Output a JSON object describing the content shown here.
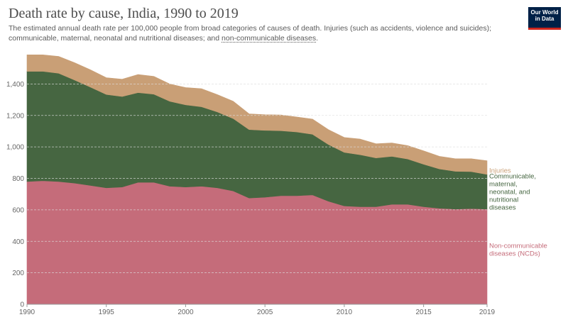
{
  "header": {
    "title": "Death rate by cause, India, 1990 to 2019",
    "subtitle_main": "The estimated annual death rate per 100,000 people from broad categories of causes of death. Injuries (such as accidents, violence and suicides); communicable, maternal, neonatal and nutritional diseases; and ",
    "subtitle_link": "non-communicable diseases",
    "subtitle_end": ".",
    "logo_line1": "Our World",
    "logo_line2": "in Data"
  },
  "colors": {
    "ncd": "#c56c7a",
    "communicable": "#466641",
    "injuries": "#c99f76",
    "grid": "#dddddd"
  },
  "chart_data": {
    "type": "area",
    "stacked": true,
    "title": "Death rate by cause, India, 1990 to 2019",
    "x": [
      1990,
      1991,
      1992,
      1993,
      1994,
      1995,
      1996,
      1997,
      1998,
      1999,
      2000,
      2001,
      2002,
      2003,
      2004,
      2005,
      2006,
      2007,
      2008,
      2009,
      2010,
      2011,
      2012,
      2013,
      2014,
      2015,
      2016,
      2017,
      2018,
      2019
    ],
    "series": [
      {
        "name": "Non-communicable diseases (NCDs)",
        "label_lines": [
          "Non-communicable",
          "diseases (NCDs)"
        ],
        "color": "#c56c7a",
        "values": [
          780,
          785,
          780,
          770,
          755,
          740,
          745,
          775,
          775,
          750,
          745,
          750,
          740,
          720,
          675,
          680,
          690,
          690,
          695,
          655,
          625,
          620,
          620,
          635,
          635,
          620,
          610,
          605,
          608,
          605
        ]
      },
      {
        "name": "Communicable, maternal, neonatal, and nutritional diseases",
        "label_lines": [
          "Communicable,",
          "maternal,",
          "neonatal, and",
          "nutritional",
          "diseases"
        ],
        "color": "#466641",
        "values": [
          700,
          695,
          688,
          655,
          625,
          593,
          575,
          570,
          560,
          540,
          522,
          505,
          482,
          460,
          435,
          425,
          413,
          405,
          385,
          360,
          340,
          330,
          310,
          305,
          288,
          270,
          250,
          240,
          235,
          220
        ]
      },
      {
        "name": "Injuries",
        "label_lines": [
          "Injuries"
        ],
        "color": "#c99f76",
        "values": [
          105,
          105,
          107,
          110,
          110,
          107,
          110,
          115,
          113,
          110,
          110,
          115,
          110,
          110,
          100,
          100,
          100,
          95,
          97,
          95,
          95,
          100,
          90,
          85,
          85,
          85,
          80,
          80,
          82,
          87
        ]
      }
    ],
    "y_ticks": [
      0,
      200,
      400,
      600,
      800,
      1000,
      1200,
      1400
    ],
    "x_ticks": [
      1990,
      1995,
      2000,
      2005,
      2010,
      2015,
      2019
    ],
    "ylim": [
      0,
      1600
    ],
    "xlim": [
      1990,
      2019
    ],
    "grid": true
  }
}
